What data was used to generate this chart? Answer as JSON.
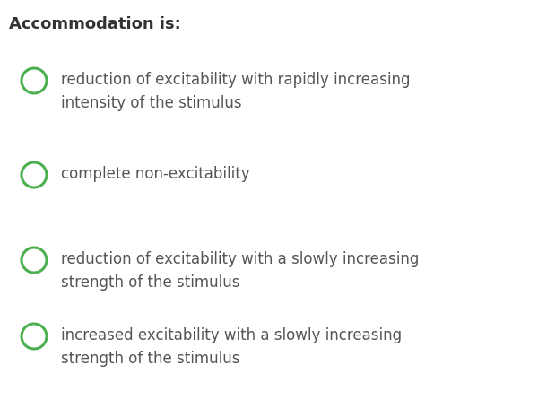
{
  "title": "Accommodation is:",
  "title_fontsize": 13,
  "title_fontweight": "bold",
  "title_color": "#333333",
  "background_color": "#ffffff",
  "circle_color": "#4CAF50",
  "circle_linewidth": 2.2,
  "text_color": "#555555",
  "text_fontsize": 12,
  "options": [
    [
      "reduction of excitability with rapidly increasing",
      "intensity of the stimulus"
    ],
    [
      "complete non-excitability"
    ],
    [
      "reduction of excitability with a slowly increasing",
      "strength of the stimulus"
    ],
    [
      "increased excitability with a slowly increasing",
      "strength of the stimulus"
    ]
  ]
}
